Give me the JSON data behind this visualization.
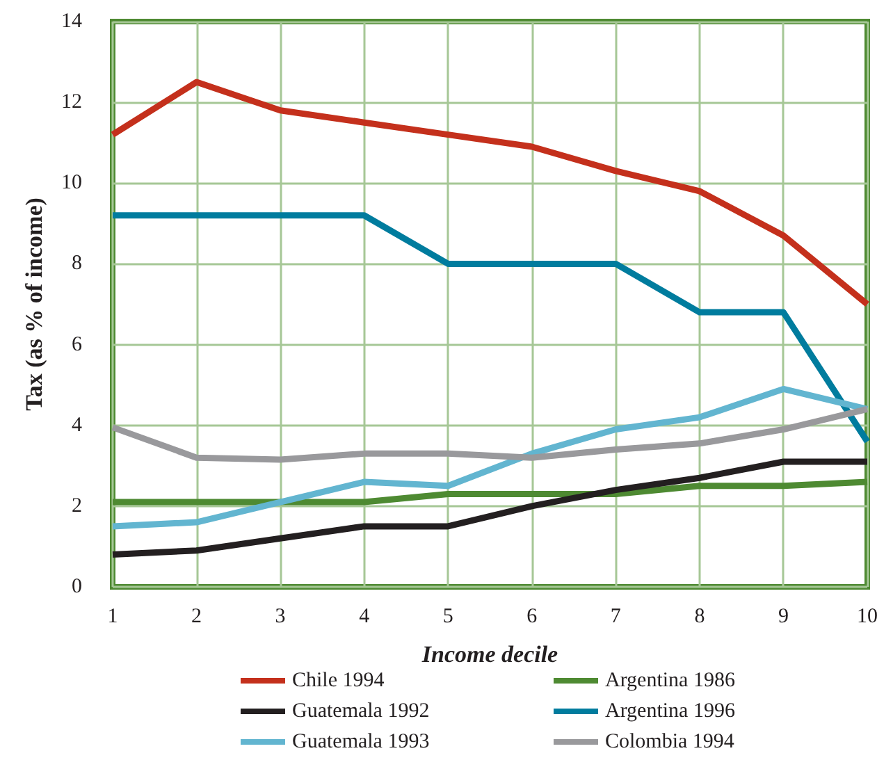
{
  "chart_data": {
    "type": "line",
    "xlabel": "Income decile",
    "ylabel": "Tax (as % of income)",
    "x": [
      1,
      2,
      3,
      4,
      5,
      6,
      7,
      8,
      9,
      10
    ],
    "xlim": [
      1,
      10
    ],
    "xticks": [
      1,
      2,
      3,
      4,
      5,
      6,
      7,
      8,
      9,
      10
    ],
    "ylim": [
      0,
      14
    ],
    "yticks": [
      0,
      2,
      4,
      6,
      8,
      10,
      12,
      14
    ],
    "grid": true,
    "legend": "bottom",
    "marker": "none",
    "line_style": "solid",
    "series": [
      {
        "name": "Chile 1994",
        "color": "#c4301c",
        "values": [
          11.2,
          12.5,
          11.8,
          11.5,
          11.2,
          10.9,
          10.3,
          9.8,
          8.7,
          7.0
        ]
      },
      {
        "name": "Argentina 1986",
        "color": "#4e8a32",
        "values": [
          2.1,
          2.1,
          2.1,
          2.1,
          2.3,
          2.3,
          2.3,
          2.5,
          2.5,
          2.6
        ]
      },
      {
        "name": "Guatemala 1992",
        "color": "#231f20",
        "values": [
          0.8,
          0.9,
          1.2,
          1.5,
          1.5,
          2.0,
          2.4,
          2.7,
          3.1,
          3.1
        ]
      },
      {
        "name": "Argentina 1996",
        "color": "#007c9e",
        "values": [
          9.2,
          9.2,
          9.2,
          9.2,
          8.0,
          8.0,
          8.0,
          6.8,
          6.8,
          3.6
        ]
      },
      {
        "name": "Guatemala 1993",
        "color": "#62b5d0",
        "values": [
          1.5,
          1.6,
          2.1,
          2.6,
          2.5,
          3.3,
          3.9,
          4.2,
          4.9,
          4.4
        ]
      },
      {
        "name": "Colombia 1994",
        "color": "#99999c",
        "values": [
          3.95,
          3.2,
          3.15,
          3.3,
          3.3,
          3.2,
          3.4,
          3.55,
          3.9,
          4.4
        ]
      }
    ]
  }
}
